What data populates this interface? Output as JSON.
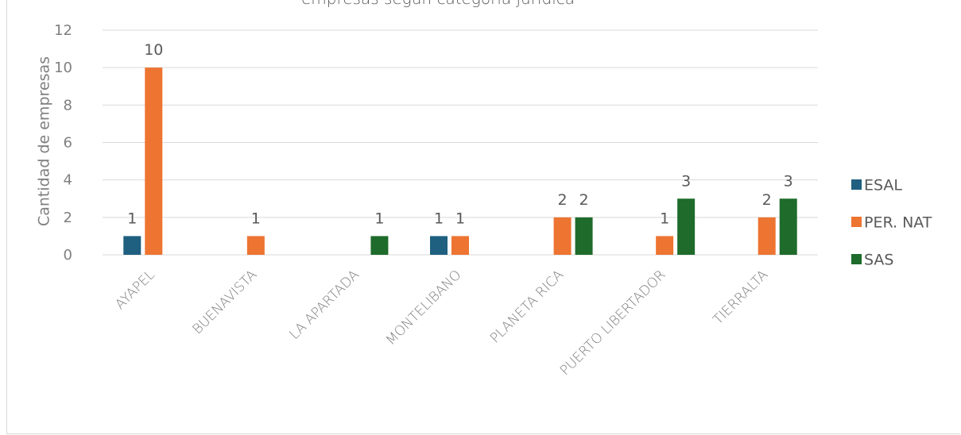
{
  "chart_data": {
    "type": "bar",
    "title": "",
    "title_partial": "empresas según categoría jurídica",
    "ylabel": "Cantidad de empresas",
    "xlabel": "",
    "ylim": [
      0,
      12
    ],
    "yticks": [
      0,
      2,
      4,
      6,
      8,
      10,
      12
    ],
    "grid": true,
    "legend_position": "right",
    "categories": [
      "AYAPEL",
      "BUENAVISTA",
      "LA APARTADA",
      "MONTELIBANO",
      "PLANETA RICA",
      "PUERTO LIBERTADOR",
      "TIERRALTA"
    ],
    "series": [
      {
        "name": "ESAL",
        "color": "#1f5f7f",
        "values": [
          1,
          null,
          null,
          1,
          null,
          null,
          null
        ]
      },
      {
        "name": "PER. NAT",
        "color": "#ed7431",
        "values": [
          10,
          1,
          null,
          1,
          2,
          1,
          2
        ]
      },
      {
        "name": "SAS",
        "color": "#1e6b2b",
        "values": [
          null,
          null,
          1,
          null,
          2,
          3,
          3
        ]
      }
    ]
  }
}
